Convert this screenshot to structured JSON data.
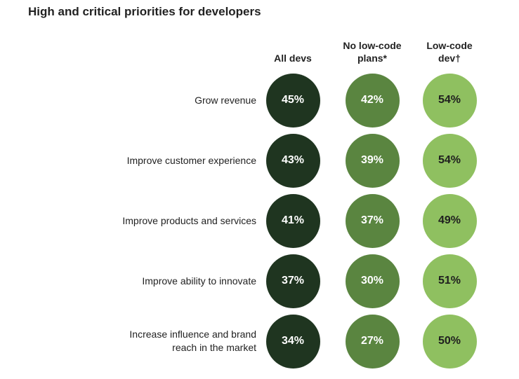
{
  "chart_data": {
    "type": "table",
    "title": "High and critical priorities for developers",
    "columns": [
      {
        "name_lines": [
          "All devs"
        ],
        "color": "#1f3520",
        "text_color": "#ffffff"
      },
      {
        "name_lines": [
          "No low-code",
          "plans*"
        ],
        "color": "#5a8540",
        "text_color": "#ffffff"
      },
      {
        "name_lines": [
          "Low-code",
          "dev†"
        ],
        "color": "#8fc060",
        "text_color": "#1f1f1f"
      }
    ],
    "rows": [
      {
        "label_lines": [
          "Grow revenue"
        ],
        "values": [
          45,
          42,
          54
        ]
      },
      {
        "label_lines": [
          "Improve customer experience"
        ],
        "values": [
          43,
          39,
          54
        ]
      },
      {
        "label_lines": [
          "Improve products and services"
        ],
        "values": [
          41,
          37,
          49
        ]
      },
      {
        "label_lines": [
          "Improve ability to innovate"
        ],
        "values": [
          37,
          30,
          51
        ]
      },
      {
        "label_lines": [
          "Increase influence and brand",
          "reach in the market"
        ],
        "values": [
          34,
          27,
          50
        ]
      }
    ],
    "value_suffix": "%"
  }
}
